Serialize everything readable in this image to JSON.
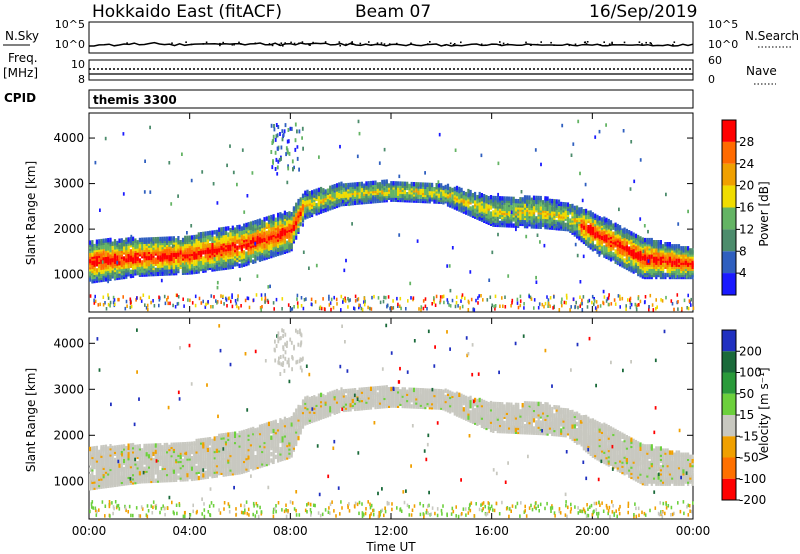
{
  "header": {
    "station": "Hokkaido East (fitACF)",
    "beam": "Beam 07",
    "date": "16/Sep/2019"
  },
  "top_strip": {
    "nsky_label": "N.Sky",
    "nsky_ticks": [
      "10^5",
      "10^0"
    ],
    "nsearch_label": "N.Search",
    "freq_label_1": "Freq.",
    "freq_label_2": "[MHz]",
    "freq_ticks": [
      "10",
      "8"
    ],
    "nave_label": "Nave",
    "nave_ticks": [
      "60",
      "0"
    ],
    "cpid_label": "CPID",
    "cpid_value": "themis 3300"
  },
  "chart_data": [
    {
      "type": "heatmap",
      "panel": "power",
      "xlabel": "",
      "ylabel": "Slant Range [km]",
      "x_ticks": [
        "00:00",
        "04:00",
        "08:00",
        "12:00",
        "16:00",
        "20:00",
        "00:00"
      ],
      "xlim": [
        0,
        24
      ],
      "y_ticks": [
        1000,
        2000,
        3000,
        4000
      ],
      "ylim": [
        180,
        4550
      ],
      "colorbar_label": "Power [dB]",
      "colorbar_ticks": [
        4,
        8,
        12,
        16,
        20,
        24,
        28
      ],
      "colorbar_range": [
        0,
        32
      ],
      "colors": [
        "#1a1aff",
        "#2f5fbf",
        "#4c8c6c",
        "#64b464",
        "#f0dc00",
        "#f0a000",
        "#ff6a00",
        "#ff0000"
      ],
      "echo_band_km": [
        [
          0,
          800,
          1700
        ],
        [
          2,
          950,
          1750
        ],
        [
          4,
          1000,
          1800
        ],
        [
          6,
          1150,
          2050
        ],
        [
          8,
          1500,
          2350
        ],
        [
          8.5,
          2200,
          2750
        ],
        [
          10,
          2500,
          2950
        ],
        [
          12,
          2600,
          3000
        ],
        [
          14,
          2550,
          2950
        ],
        [
          16,
          2050,
          2650
        ],
        [
          18,
          2000,
          2650
        ],
        [
          19,
          1950,
          2500
        ],
        [
          20,
          1500,
          2300
        ],
        [
          22,
          900,
          1750
        ],
        [
          24,
          900,
          1500
        ]
      ]
    },
    {
      "type": "heatmap",
      "panel": "velocity",
      "xlabel": "Time UT",
      "ylabel": "Slant Range [km]",
      "x_ticks": [
        "00:00",
        "04:00",
        "08:00",
        "12:00",
        "16:00",
        "20:00",
        "00:00"
      ],
      "xlim": [
        0,
        24
      ],
      "y_ticks": [
        1000,
        2000,
        3000,
        4000
      ],
      "ylim": [
        180,
        4550
      ],
      "colorbar_label": "Velocity [m s⁻¹]",
      "colorbar_ticks": [
        200,
        100,
        50,
        15,
        -15,
        -50,
        -100,
        -200
      ],
      "colors": [
        "#2030c0",
        "#1a6a3a",
        "#2a9a3a",
        "#6cd03c",
        "#c8c8c0",
        "#f0a000",
        "#ff7000",
        "#ff0000"
      ]
    }
  ]
}
